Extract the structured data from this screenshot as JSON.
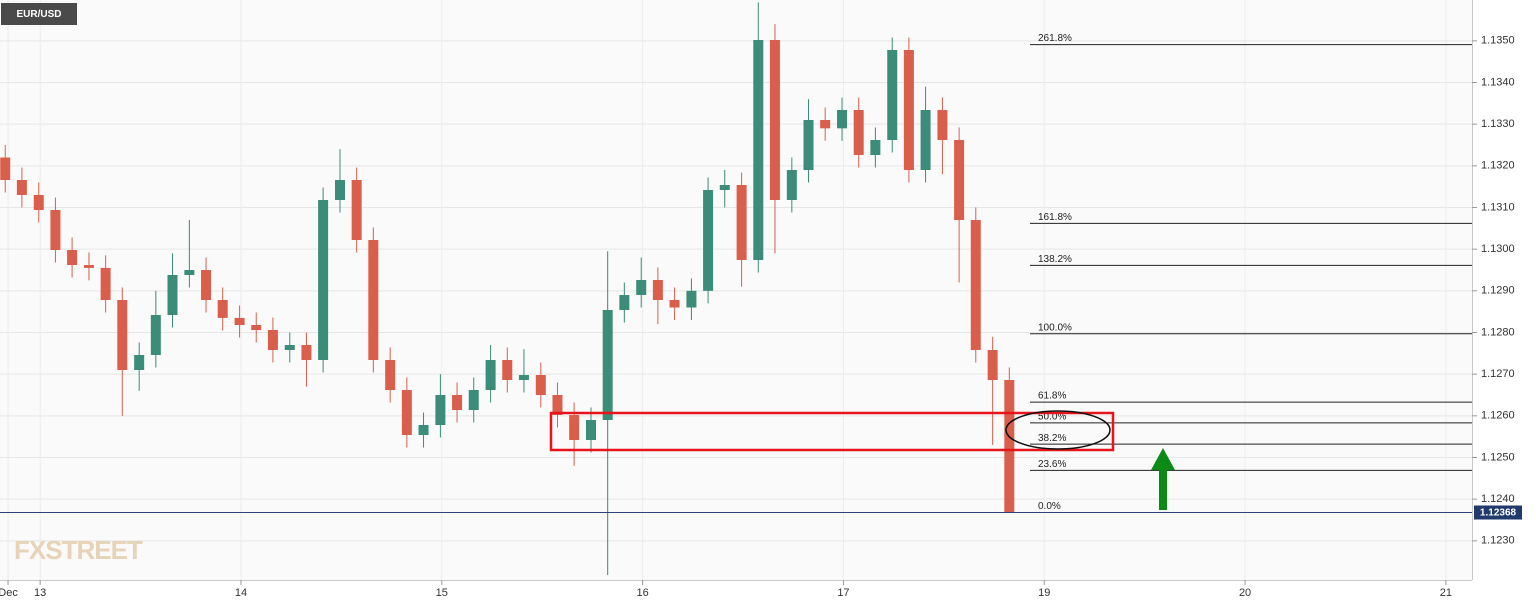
{
  "chart_data": {
    "type": "candlestick",
    "symbol": "EUR/USD",
    "watermark": "FXSTREET",
    "up_color": "#3b8c78",
    "down_color": "#d95f4c",
    "grid": true,
    "xlim": [
      -0.2,
      7.13
    ],
    "xticks": [
      {
        "value": -0.16,
        "label": "Dec"
      },
      {
        "value": 0,
        "label": "13"
      },
      {
        "value": 1,
        "label": "14"
      },
      {
        "value": 2,
        "label": "15"
      },
      {
        "value": 3,
        "label": "16"
      },
      {
        "value": 4,
        "label": "17"
      },
      {
        "value": 5,
        "label": "19"
      },
      {
        "value": 6,
        "label": "20"
      },
      {
        "value": 7,
        "label": "21"
      }
    ],
    "ylim": [
      1.12206,
      1.13598
    ],
    "yticks": [
      {
        "value": 1.123,
        "label": "1.1230"
      },
      {
        "value": 1.124,
        "label": "1.1240"
      },
      {
        "value": 1.125,
        "label": "1.1250"
      },
      {
        "value": 1.126,
        "label": "1.1260"
      },
      {
        "value": 1.127,
        "label": "1.1270"
      },
      {
        "value": 1.128,
        "label": "1.1280"
      },
      {
        "value": 1.129,
        "label": "1.1290"
      },
      {
        "value": 1.13,
        "label": "1.1300"
      },
      {
        "value": 1.131,
        "label": "1.1310"
      },
      {
        "value": 1.132,
        "label": "1.1320"
      },
      {
        "value": 1.133,
        "label": "1.1330"
      },
      {
        "value": 1.134,
        "label": "1.1340"
      },
      {
        "value": 1.135,
        "label": "1.1350"
      }
    ],
    "last_price": 1.12368,
    "fib_levels": [
      {
        "label": "261.8%",
        "value": 1.13491
      },
      {
        "label": "161.8%",
        "value": 1.13062
      },
      {
        "label": "138.2%",
        "value": 1.12961
      },
      {
        "label": "100.0%",
        "value": 1.12797
      },
      {
        "label": "61.8%",
        "value": 1.12633
      },
      {
        "label": "50.0%",
        "value": 1.12583
      },
      {
        "label": "38.2%",
        "value": 1.12532
      },
      {
        "label": "23.6%",
        "value": 1.12469
      },
      {
        "label": "0.0%",
        "value": 1.12368
      }
    ],
    "x": [
      -0.174,
      -0.091,
      -0.007,
      0.076,
      0.159,
      0.243,
      0.326,
      0.409,
      0.493,
      0.576,
      0.659,
      0.743,
      0.826,
      0.909,
      0.993,
      1.076,
      1.159,
      1.243,
      1.326,
      1.409,
      1.493,
      1.576,
      1.659,
      1.743,
      1.826,
      1.909,
      1.993,
      2.076,
      2.159,
      2.243,
      2.326,
      2.409,
      2.493,
      2.576,
      2.659,
      2.743,
      2.826,
      2.909,
      2.993,
      3.076,
      3.159,
      3.243,
      3.326,
      3.409,
      3.493,
      3.576,
      3.659,
      3.743,
      3.826,
      3.909,
      3.993,
      4.076,
      4.159,
      4.243,
      4.326,
      4.409,
      4.493,
      4.576,
      4.659,
      4.743,
      4.826
    ],
    "open": [
      1.1322,
      1.13166,
      1.1313,
      1.13094,
      1.12998,
      1.12962,
      1.12955,
      1.12878,
      1.1271,
      1.12746,
      1.12842,
      1.12938,
      1.1295,
      1.12878,
      1.12835,
      1.12818,
      1.12806,
      1.12758,
      1.1277,
      1.12734,
      1.13118,
      1.13166,
      1.13022,
      1.12734,
      1.12662,
      1.12554,
      1.12578,
      1.1265,
      1.12614,
      1.12662,
      1.12734,
      1.12686,
      1.12698,
      1.1265,
      1.12602,
      1.12542,
      1.1259,
      1.12854,
      1.1289,
      1.12926,
      1.12878,
      1.1286,
      1.129,
      1.13142,
      1.13154,
      1.12974,
      1.13502,
      1.13118,
      1.1319,
      1.1331,
      1.1329,
      1.13334,
      1.13226,
      1.13262,
      1.13478,
      1.1319,
      1.13334,
      1.13262,
      1.1307,
      1.12758,
      1.12686
    ],
    "high": [
      1.1325,
      1.13196,
      1.1316,
      1.13124,
      1.13028,
      1.12992,
      1.12985,
      1.12908,
      1.12776,
      1.129,
      1.1299,
      1.1307,
      1.1298,
      1.12908,
      1.12865,
      1.12848,
      1.12836,
      1.128,
      1.128,
      1.13148,
      1.1324,
      1.13196,
      1.13052,
      1.12764,
      1.12692,
      1.12608,
      1.127,
      1.1268,
      1.12692,
      1.1277,
      1.12764,
      1.1276,
      1.12728,
      1.1268,
      1.12632,
      1.1262,
      1.12995,
      1.1292,
      1.1298,
      1.12956,
      1.12908,
      1.1293,
      1.13172,
      1.1319,
      1.13184,
      1.13592,
      1.1354,
      1.1322,
      1.1336,
      1.1334,
      1.13364,
      1.13364,
      1.13292,
      1.13508,
      1.13508,
      1.1339,
      1.13364,
      1.13292,
      1.131,
      1.1279,
      1.12716
    ],
    "low": [
      1.13136,
      1.131,
      1.13064,
      1.12968,
      1.12932,
      1.12925,
      1.12848,
      1.126,
      1.1266,
      1.12716,
      1.12812,
      1.12908,
      1.12848,
      1.12805,
      1.12788,
      1.12776,
      1.12728,
      1.12728,
      1.1267,
      1.12704,
      1.13088,
      1.12992,
      1.12704,
      1.12632,
      1.12524,
      1.12524,
      1.12548,
      1.12584,
      1.12584,
      1.12632,
      1.12656,
      1.12656,
      1.1262,
      1.12572,
      1.1248,
      1.12512,
      1.12218,
      1.12824,
      1.1286,
      1.1282,
      1.1283,
      1.1283,
      1.1287,
      1.131,
      1.1291,
      1.12944,
      1.1299,
      1.13088,
      1.1316,
      1.1326,
      1.1326,
      1.13196,
      1.13196,
      1.13232,
      1.1316,
      1.1316,
      1.1318,
      1.1292,
      1.12728,
      1.1253,
      1.12368
    ],
    "close": [
      1.13166,
      1.1313,
      1.13094,
      1.12998,
      1.12962,
      1.12955,
      1.12878,
      1.1271,
      1.12746,
      1.12842,
      1.12938,
      1.1295,
      1.12878,
      1.12835,
      1.12818,
      1.12806,
      1.12758,
      1.1277,
      1.12734,
      1.13118,
      1.13166,
      1.13022,
      1.12734,
      1.12662,
      1.12554,
      1.12578,
      1.1265,
      1.12614,
      1.12662,
      1.12734,
      1.12686,
      1.12698,
      1.1265,
      1.12602,
      1.12542,
      1.1259,
      1.12854,
      1.1289,
      1.12926,
      1.12878,
      1.1286,
      1.129,
      1.13142,
      1.13154,
      1.12974,
      1.13502,
      1.13118,
      1.1319,
      1.1331,
      1.1329,
      1.13334,
      1.13226,
      1.13262,
      1.13478,
      1.1319,
      1.13334,
      1.13262,
      1.1307,
      1.12758,
      1.12686,
      1.12368
    ]
  }
}
